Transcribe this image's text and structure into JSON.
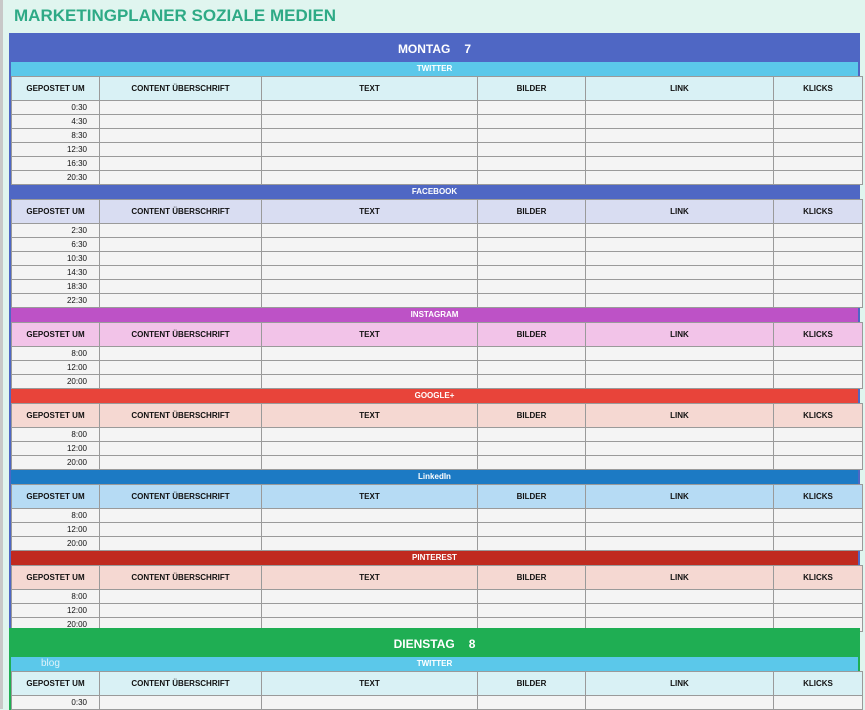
{
  "title": "MARKETINGPLANER SOZIALE MEDIEN",
  "watermark": "blog",
  "columns": [
    "GEPOSTET UM",
    "CONTENT ÜBERSCHRIFT",
    "TEXT",
    "BILDER",
    "LINK",
    "KLICKS"
  ],
  "days": [
    {
      "name": "MONTAG",
      "number": "7",
      "color": "#4f67c4",
      "platforms": [
        {
          "name": "TWITTER",
          "bar_color": "#5bc8ea",
          "header_color": "#d9f1f5",
          "times": [
            "0:30",
            "4:30",
            "8:30",
            "12:30",
            "16:30",
            "20:30"
          ]
        },
        {
          "name": "FACEBOOK",
          "bar_color": "#4f67c4",
          "header_color": "#d9ddf2",
          "times": [
            "2:30",
            "6:30",
            "10:30",
            "14:30",
            "18:30",
            "22:30"
          ]
        },
        {
          "name": "INSTAGRAM",
          "bar_color": "#bd52c6",
          "header_color": "#f2c3e8",
          "times": [
            "8:00",
            "12:00",
            "20:00"
          ]
        },
        {
          "name": "GOOGLE+",
          "bar_color": "#e8443a",
          "header_color": "#f5d8d2",
          "times": [
            "8:00",
            "12:00",
            "20:00"
          ]
        },
        {
          "name": "LinkedIn",
          "bar_color": "#1c7ac4",
          "header_color": "#b6dbf4",
          "times": [
            "8:00",
            "12:00",
            "20:00"
          ]
        },
        {
          "name": "PINTEREST",
          "bar_color": "#c02a1f",
          "header_color": "#f5d8d2",
          "times": [
            "8:00",
            "12:00",
            "20:00"
          ]
        }
      ]
    },
    {
      "name": "DIENSTAG",
      "number": "8",
      "color": "#1fae53",
      "platforms": [
        {
          "name": "TWITTER",
          "bar_color": "#5bc8ea",
          "header_color": "#d9f1f5",
          "times": [
            "0:30"
          ]
        }
      ]
    }
  ]
}
